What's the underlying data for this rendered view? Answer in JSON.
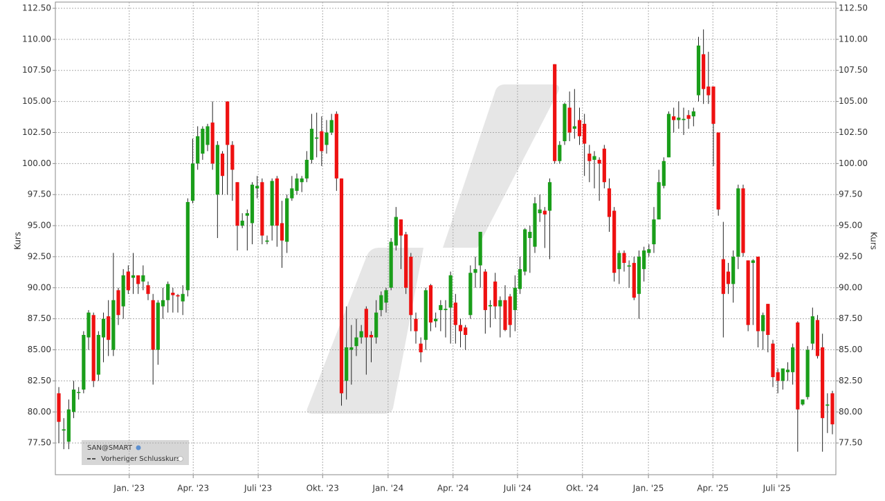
{
  "chart_data": {
    "type": "candlestick",
    "y_label": "Kurs",
    "y2_label": "Kurs",
    "legend": [
      "SAN@SMART",
      "Vorheriger Schlusskurs"
    ],
    "up_color": "#1a9e1a",
    "down_color": "#ee1111",
    "grid": true,
    "xlim": [
      -0.7,
      156.7
    ],
    "xticks": [
      {
        "value": 14.2,
        "label": "Jan. '23"
      },
      {
        "value": 27.1,
        "label": "Apr. '23"
      },
      {
        "value": 40.2,
        "label": "Juli '23"
      },
      {
        "value": 53.2,
        "label": "Okt. '23"
      },
      {
        "value": 66.4,
        "label": "Jan. '24"
      },
      {
        "value": 79.5,
        "label": "Apr. '24"
      },
      {
        "value": 92.5,
        "label": "Juli '24"
      },
      {
        "value": 105.6,
        "label": "Okt. '24"
      },
      {
        "value": 118.9,
        "label": "Jan. '25"
      },
      {
        "value": 131.9,
        "label": "Apr. '25"
      },
      {
        "value": 144.8,
        "label": "Juli '25"
      }
    ],
    "ylim": [
      75,
      112.5
    ],
    "yticks": [
      {
        "value": 77.5,
        "label": "77.50"
      },
      {
        "value": 80,
        "label": "80.00"
      },
      {
        "value": 82.5,
        "label": "82.50"
      },
      {
        "value": 85,
        "label": "85.00"
      },
      {
        "value": 87.5,
        "label": "87.50"
      },
      {
        "value": 90,
        "label": "90.00"
      },
      {
        "value": 92.5,
        "label": "92.50"
      },
      {
        "value": 95,
        "label": "95.00"
      },
      {
        "value": 97.5,
        "label": "97.50"
      },
      {
        "value": 100,
        "label": "100.00"
      },
      {
        "value": 102.5,
        "label": "102.50"
      },
      {
        "value": 105,
        "label": "105.00"
      },
      {
        "value": 107.5,
        "label": "107.50"
      },
      {
        "value": 110,
        "label": "110.00"
      },
      {
        "value": 112.5,
        "label": "112.50"
      }
    ],
    "x": [
      0,
      1,
      2,
      3,
      4,
      5,
      6,
      7,
      8,
      9,
      10,
      11,
      12,
      13,
      14,
      15,
      16,
      17,
      18,
      19,
      20,
      21,
      22,
      23,
      24,
      25,
      26,
      27,
      28,
      29,
      30,
      31,
      32,
      33,
      34,
      35,
      36,
      37,
      38,
      39,
      40,
      41,
      42,
      43,
      44,
      45,
      46,
      47,
      48,
      49,
      50,
      51,
      52,
      53,
      54,
      55,
      56,
      57,
      58,
      59,
      60,
      61,
      62,
      63,
      64,
      65,
      66,
      67,
      68,
      69,
      70,
      71,
      72,
      73,
      74,
      75,
      76,
      77,
      78,
      79,
      80,
      81,
      82,
      83,
      84,
      85,
      86,
      87,
      88,
      89,
      90,
      91,
      92,
      93,
      94,
      95,
      96,
      97,
      98,
      99,
      100,
      101,
      102,
      103,
      104,
      105,
      106,
      107,
      108,
      109,
      110,
      111,
      112,
      113,
      114,
      115,
      116,
      117,
      118,
      119,
      120,
      121,
      122,
      123,
      124,
      125,
      126,
      127,
      128,
      129,
      130,
      131,
      132,
      133,
      134,
      135,
      136,
      137,
      138,
      139,
      140,
      141,
      142,
      143,
      144,
      145,
      146,
      147,
      148,
      149,
      150,
      151,
      152,
      153,
      154,
      155,
      156
    ],
    "open": [
      81.5,
      78.5,
      77.6,
      80,
      81.6,
      81.8,
      86,
      87.8,
      83,
      86,
      87.7,
      85,
      89.8,
      88.5,
      91.3,
      90.8,
      91,
      90.5,
      90.2,
      89,
      85,
      88.5,
      89,
      89.6,
      89.4,
      88.9,
      89.8,
      97,
      100,
      100.8,
      101.5,
      103.3,
      97.5,
      100.8,
      105,
      101.5,
      98.5,
      95,
      95.8,
      95.2,
      98,
      98.5,
      93.7,
      95,
      98.8,
      95.2,
      93.7,
      97.2,
      97.8,
      98.5,
      98.8,
      100.3,
      102,
      102.6,
      101.5,
      102.5,
      104,
      98.8,
      82.5,
      85,
      85.3,
      86,
      88.3,
      86.2,
      86,
      88.2,
      88.8,
      90,
      93.4,
      95.5,
      94.3,
      92.5,
      87.5,
      85.5,
      85.8,
      90.2,
      87.3,
      88.2,
      88.2,
      88.4,
      88.8,
      87,
      86.8,
      87.8,
      91.2,
      91.8,
      91.3,
      88.5,
      90.5,
      88.5,
      89,
      89.3,
      88.2,
      89.9,
      91.3,
      94,
      93.3,
      96,
      96.2,
      96.2,
      108,
      100.2,
      101.8,
      104.5,
      102.8,
      103.5,
      103.2,
      100.8,
      100.3,
      100.3,
      101.2,
      98,
      96.2,
      91.5,
      92.8,
      91.7,
      92,
      89.5,
      91.5,
      92.8,
      93.5,
      95.5,
      98.2,
      100.5,
      103.8,
      103.5,
      103.5,
      103.9,
      103.8,
      105.5,
      108.8,
      106.2,
      106.2,
      102.5,
      92.3,
      91.3,
      90.3,
      92.5,
      98,
      92.2,
      92,
      92.5,
      86.5,
      88.7,
      85.5,
      83.2,
      82.5,
      83.2,
      83.2,
      87.2,
      80.6,
      81.2,
      85.5,
      87.4,
      85.2,
      80.5,
      81.5
    ],
    "high": [
      82,
      79.5,
      81,
      82.5,
      82,
      86.5,
      88.2,
      88,
      86.5,
      88,
      89,
      92.8,
      90,
      91.5,
      91.8,
      92.8,
      91,
      91.8,
      90.5,
      89.5,
      89,
      90,
      90.5,
      90,
      89.5,
      90.2,
      97.2,
      102,
      103,
      103,
      103.2,
      105,
      101.8,
      101,
      105,
      101.8,
      98.5,
      96,
      96.3,
      98.5,
      99,
      98.8,
      94.2,
      98.8,
      99,
      97,
      97.5,
      99,
      99.2,
      99,
      101,
      104,
      104.1,
      103.8,
      103.5,
      104,
      104.2,
      98.8,
      88.5,
      87,
      87.5,
      87,
      88.5,
      86.5,
      89,
      89.7,
      90,
      94,
      96.5,
      95.5,
      94.5,
      92.8,
      88,
      86,
      90,
      90.3,
      88,
      89,
      89,
      91.3,
      89.5,
      87.5,
      87,
      91.8,
      92.5,
      94.5,
      91.5,
      89,
      91.2,
      89.3,
      90.2,
      89.5,
      91,
      92.5,
      94.8,
      95,
      97.3,
      97.5,
      96.5,
      98.8,
      108,
      101.8,
      104.9,
      105.8,
      106,
      104.5,
      104,
      101.5,
      101,
      100.5,
      101.5,
      98.8,
      96.5,
      93,
      93,
      92.2,
      92.5,
      93,
      93.3,
      93.5,
      96.5,
      99.5,
      100.5,
      104.2,
      104.5,
      105,
      104.5,
      104.3,
      104.5,
      110.2,
      110.8,
      109,
      106.2,
      102.5,
      95.3,
      92,
      93,
      98.3,
      98.3,
      92.2,
      92.3,
      92.5,
      88,
      88.7,
      85.8,
      83.5,
      83.5,
      84,
      85.5,
      87.3,
      81,
      85.3,
      88.4,
      87.8,
      86.3,
      81.5,
      81.7
    ],
    "low": [
      77.5,
      77,
      77,
      79.5,
      81,
      81.5,
      85,
      82,
      82.5,
      84,
      84.5,
      84.5,
      87,
      87.5,
      89.5,
      89.5,
      89.5,
      89.8,
      89,
      82.2,
      83.8,
      87.5,
      88,
      88,
      88,
      87.8,
      89.3,
      96.8,
      99.5,
      100.3,
      101,
      99.5,
      94,
      97.5,
      97.5,
      97,
      93,
      94.8,
      93,
      93.5,
      97.2,
      93.5,
      93.5,
      93.8,
      93.3,
      91.6,
      92.8,
      97,
      97.5,
      97.7,
      98.5,
      100,
      100.5,
      99.8,
      100.8,
      102.3,
      97.8,
      80.5,
      81,
      82.2,
      84.5,
      85.5,
      83,
      84,
      85.5,
      87.7,
      88,
      89.8,
      93,
      91.5,
      89.5,
      86.5,
      85.5,
      84,
      85,
      86.5,
      86.8,
      86.5,
      86,
      85.5,
      85.5,
      85.2,
      85,
      87.5,
      90,
      90,
      86.3,
      86.8,
      87.5,
      86,
      86.5,
      86,
      86.5,
      89.5,
      91,
      91.2,
      92.8,
      95.3,
      93.2,
      92.3,
      100,
      100,
      101.5,
      101.8,
      102,
      101.5,
      99,
      98.5,
      98,
      97,
      98,
      94.5,
      90.5,
      90.3,
      91.3,
      90,
      89,
      87.5,
      90.5,
      92.5,
      92.8,
      95.5,
      98,
      100.5,
      102.5,
      102.8,
      102.3,
      102.8,
      103,
      105,
      104.8,
      104.8,
      99.8,
      95.8,
      86,
      89.5,
      88.8,
      91.5,
      92.5,
      86.5,
      87,
      85.2,
      85,
      84.8,
      82,
      81.5,
      81.8,
      82.5,
      82.2,
      76.8,
      80.5,
      81,
      85,
      84.3,
      76.8,
      78.3,
      78.2
    ],
    "close": [
      79.2,
      78.6,
      80.2,
      81.8,
      81.6,
      86.2,
      88,
      82.5,
      86.2,
      87.5,
      85.8,
      89,
      87.8,
      91,
      89.8,
      91,
      90.3,
      91,
      89.5,
      85,
      88.8,
      89,
      90.3,
      89.4,
      89.3,
      89.5,
      96.9,
      100,
      102.2,
      102.8,
      103,
      100,
      101.5,
      99,
      101.5,
      99.5,
      95,
      95.4,
      96,
      98.3,
      98.2,
      94.2,
      93.8,
      98.6,
      95,
      93.8,
      97.2,
      98,
      98.8,
      98.8,
      100.3,
      102.8,
      102.1,
      101,
      102.5,
      103.5,
      98.8,
      81.5,
      85.2,
      85.2,
      86,
      86.5,
      86,
      86,
      88,
      89.4,
      89.8,
      93.7,
      95.7,
      94.2,
      90,
      87.8,
      86.5,
      84.8,
      89.8,
      87.2,
      87.5,
      88.6,
      88.3,
      91,
      87,
      86.5,
      86.2,
      91.2,
      91.5,
      94.5,
      88.2,
      88.6,
      88.5,
      89,
      86.6,
      87,
      90,
      91.5,
      94.7,
      94.5,
      96.8,
      96.3,
      95.9,
      98.5,
      100.2,
      101.5,
      104.8,
      102.5,
      103,
      102.2,
      101.6,
      100.2,
      100.6,
      100,
      98.5,
      95.7,
      91.2,
      92.8,
      92,
      91.8,
      89.2,
      92.5,
      93,
      93.1,
      95.5,
      98.5,
      100.2,
      104,
      103.5,
      103.7,
      103.6,
      103.6,
      104.2,
      109.5,
      106,
      105.5,
      103.2,
      96.3,
      89.5,
      90.3,
      92.5,
      98,
      92.8,
      87,
      92.2,
      86.5,
      87.8,
      86.2,
      82.8,
      82.5,
      83.5,
      83.4,
      85.2,
      80.2,
      81,
      85,
      87.7,
      84.5,
      79.5,
      80.6,
      79
    ]
  }
}
